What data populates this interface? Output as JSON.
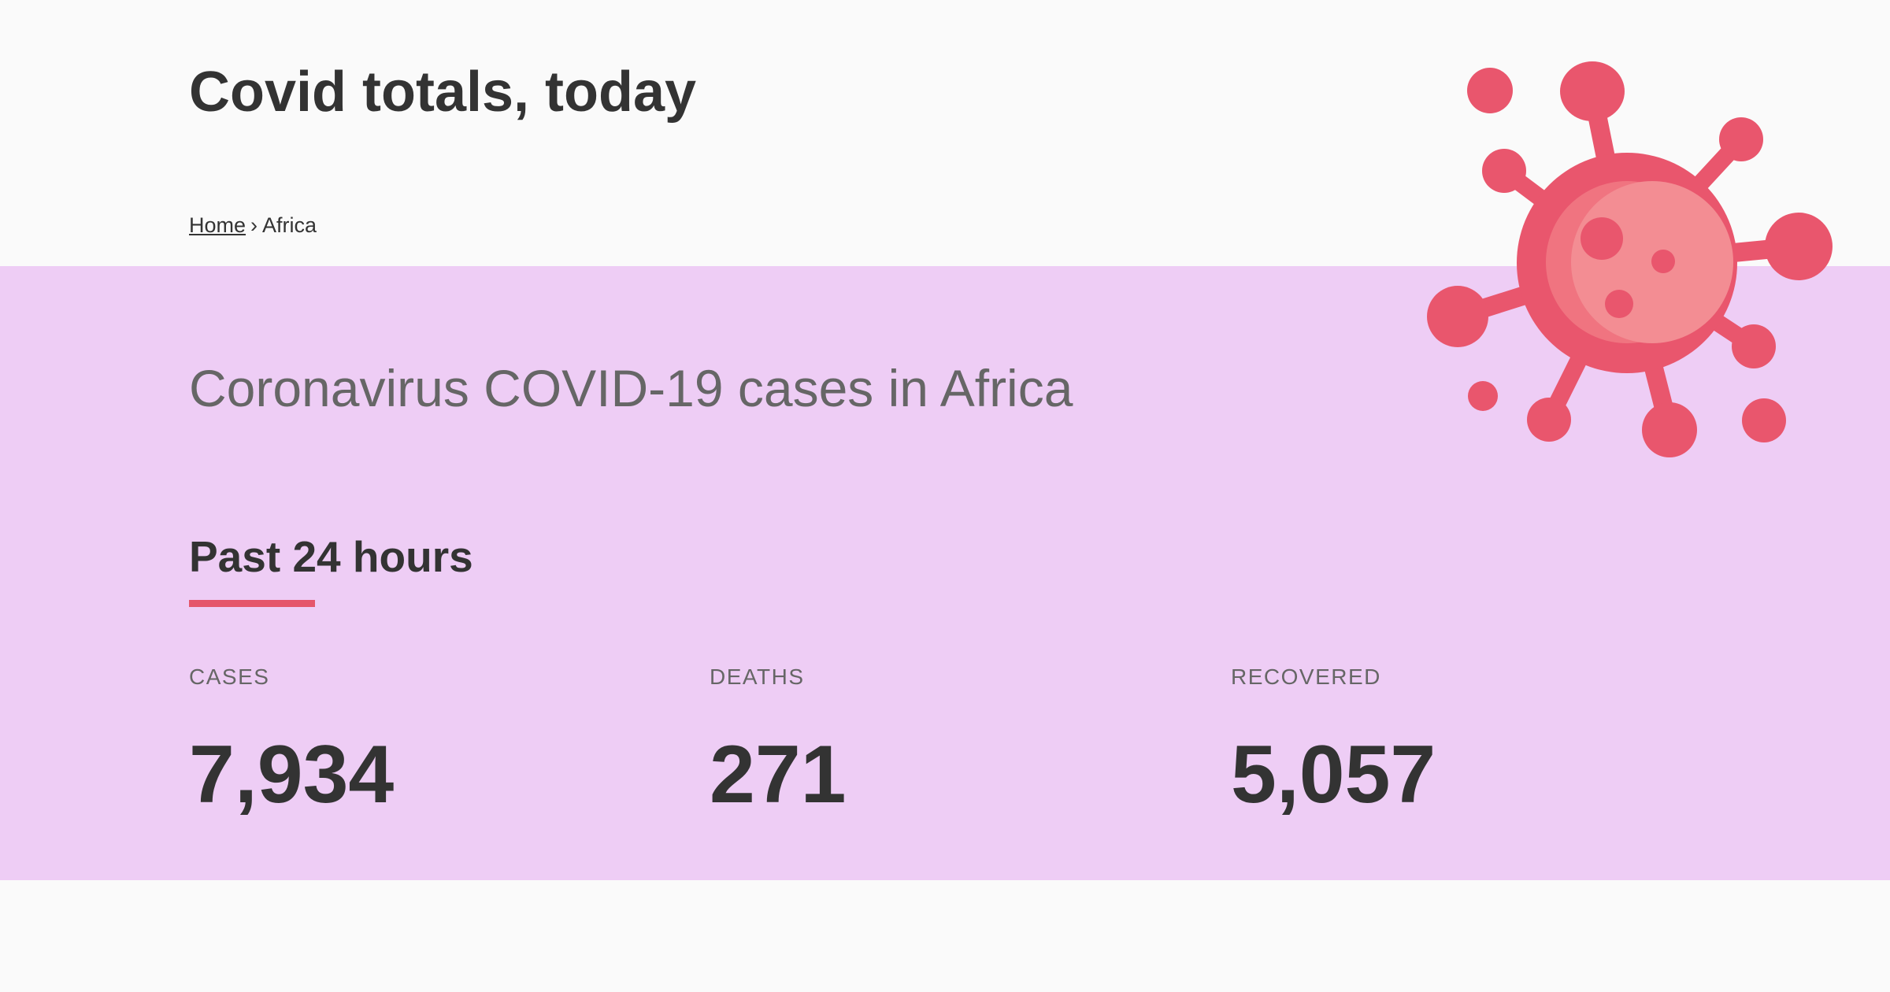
{
  "header": {
    "title": "Covid totals, today",
    "breadcrumb": {
      "home": "Home",
      "separator": "›",
      "current": "Africa"
    }
  },
  "main": {
    "lead": "Coronavirus COVID-19 cases in Africa",
    "section_title": "Past 24 hours",
    "stats": [
      {
        "label": "CASES",
        "value": "7,934"
      },
      {
        "label": "DEATHS",
        "value": "271"
      },
      {
        "label": "RECOVERED",
        "value": "5,057"
      }
    ]
  },
  "illustration": {
    "icon": "virus-icon",
    "color": "#e9566d"
  },
  "colors": {
    "band_background": "#eecdf5",
    "page_background": "#fafafa",
    "accent": "#e5566b",
    "text": "#333333",
    "muted_text": "#666666"
  }
}
